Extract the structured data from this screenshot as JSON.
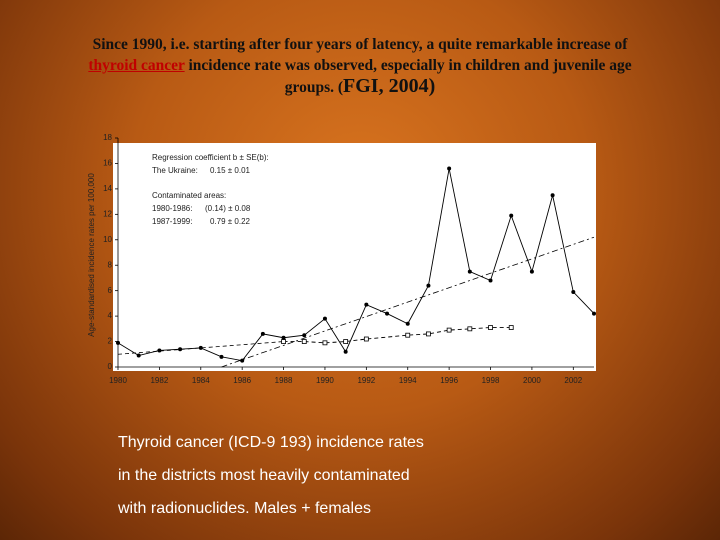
{
  "slide": {
    "heading_parts": [
      "Since 1990, i.e. starting after four years of latency, a quite remarkable increase of",
      "thyroid cancer",
      "incidence rate was observed, especially in children and juvenile age",
      "groups. (",
      "FGI, 2004)"
    ],
    "caption": [
      "Thyroid cancer (ICD-9 193) incidence rates",
      "in the districts most heavily contaminated",
      "with radionuclides. Males + females"
    ]
  },
  "chart_data": {
    "type": "line",
    "y_label": "Age-standardised incidence rates per 100,000",
    "xlim": [
      1980,
      2003
    ],
    "ylim": [
      0,
      18
    ],
    "xticks": [
      1980,
      1982,
      1984,
      1986,
      1988,
      1990,
      1992,
      1994,
      1996,
      1998,
      2000,
      2002
    ],
    "yticks": [
      0,
      2,
      4,
      6,
      8,
      10,
      12,
      14,
      16,
      18
    ],
    "annotations": [
      "Regression coefficient b ± SE(b):",
      "The Ukraine:",
      "0.15 ± 0.01",
      "Contaminated areas:",
      "1980-1986:",
      "(0.14) ± 0.08",
      "1987-1999:",
      "0.79 ± 0.22"
    ],
    "series": [
      {
        "color": "#000000",
        "marker": "filled",
        "x": [
          1980,
          1981,
          1982,
          1983,
          1984,
          1985,
          1986,
          1987,
          1988,
          1989,
          1990,
          1991,
          1992,
          1993,
          1994,
          1995,
          1996,
          1997,
          1998,
          1999,
          2000,
          2001,
          2002,
          2003
        ],
        "values": [
          1.9,
          0.9,
          1.3,
          1.4,
          1.5,
          0.8,
          0.5,
          2.6,
          2.3,
          2.5,
          3.8,
          1.2,
          4.9,
          4.2,
          3.4,
          6.4,
          15.6,
          7.5,
          6.8,
          11.9,
          7.5,
          13.5,
          5.9,
          4.2
        ]
      },
      {
        "color": "#000000",
        "marker": "open",
        "dash": "4 3",
        "x": [
          1988,
          1989,
          1990,
          1991,
          1992,
          1994,
          1995,
          1996,
          1997,
          1998,
          1999
        ],
        "values": [
          2.0,
          2.0,
          1.9,
          2.0,
          2.2,
          2.5,
          2.6,
          2.9,
          3.0,
          3.1,
          3.1
        ]
      }
    ],
    "trend_lines": [
      {
        "x": [
          1980,
          1988
        ],
        "values": [
          1.0,
          2.0
        ],
        "dash": "4 3"
      },
      {
        "x": [
          1985,
          2003
        ],
        "values": [
          0,
          10.2
        ],
        "dash": "6 3 2 3"
      }
    ]
  }
}
